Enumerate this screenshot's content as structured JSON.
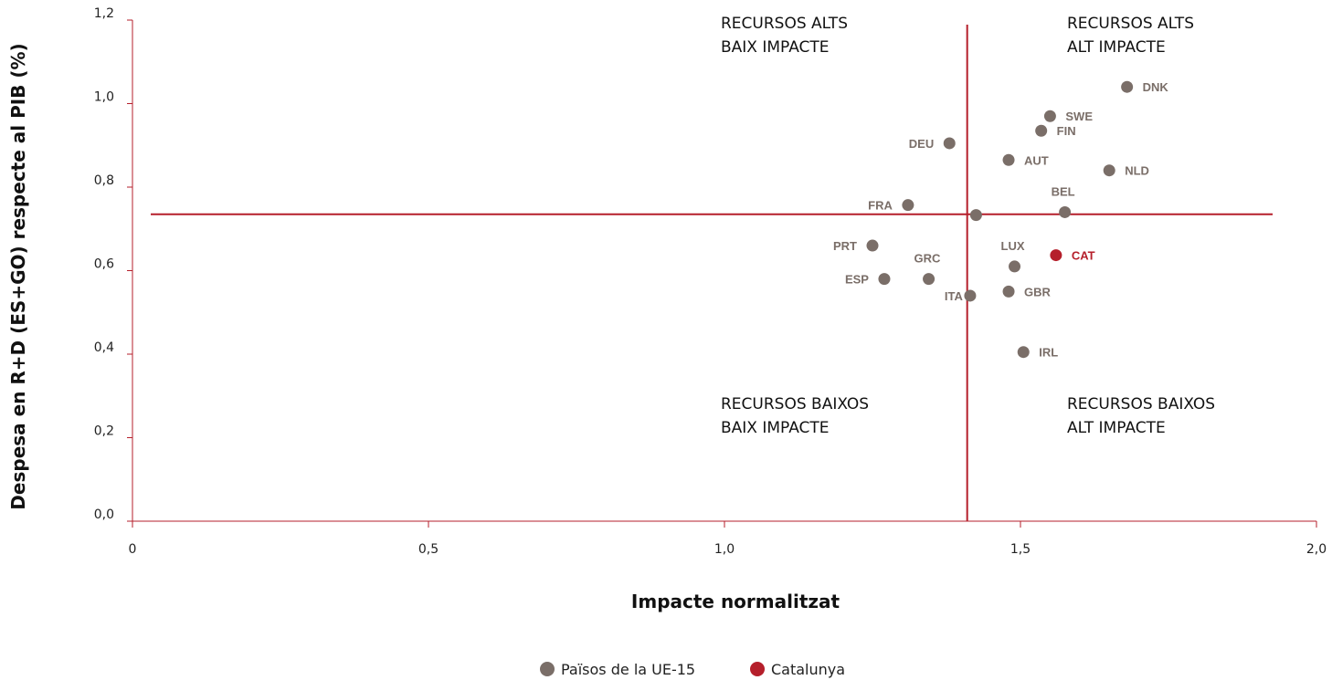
{
  "chart_data": {
    "type": "scatter",
    "xlabel": "Impacte normalitzat",
    "ylabel": "Despesa en R+D (ES+GO) respecte al PIB (%)",
    "xlim": [
      0,
      2.0
    ],
    "ylim": [
      0,
      1.2
    ],
    "x_ticks": [
      "0",
      "0,5",
      "1,0",
      "1,5",
      "2,0"
    ],
    "x_tick_values": [
      0,
      0.5,
      1.0,
      1.5,
      2.0
    ],
    "y_ticks": [
      "0,0",
      "0,2",
      "0,4",
      "0,6",
      "0,8",
      "1,0",
      "1,2"
    ],
    "y_tick_values": [
      0,
      0.2,
      0.4,
      0.6,
      0.8,
      1.0,
      1.2
    ],
    "reference_lines": {
      "x": 1.41,
      "y": 0.735
    },
    "quadrants": [
      {
        "id": "top-left",
        "line1": "RECURSOS ALTS",
        "line2": "BAIX IMPACTE"
      },
      {
        "id": "top-right",
        "line1": "RECURSOS ALTS",
        "line2": "ALT IMPACTE"
      },
      {
        "id": "bottom-left",
        "line1": "RECURSOS BAIXOS",
        "line2": "BAIX IMPACTE"
      },
      {
        "id": "bottom-right",
        "line1": "RECURSOS BAIXOS",
        "line2": "ALT IMPACTE"
      }
    ],
    "series": [
      {
        "name": "Països de la UE-15",
        "color": "#7a6e68",
        "points": [
          {
            "label": "DNK",
            "x": 1.68,
            "y": 1.04
          },
          {
            "label": "SWE",
            "x": 1.55,
            "y": 0.97
          },
          {
            "label": "FIN",
            "x": 1.535,
            "y": 0.935
          },
          {
            "label": "DEU",
            "x": 1.38,
            "y": 0.905
          },
          {
            "label": "AUT",
            "x": 1.48,
            "y": 0.865
          },
          {
            "label": "NLD",
            "x": 1.65,
            "y": 0.84
          },
          {
            "label": "FRA",
            "x": 1.31,
            "y": 0.757
          },
          {
            "label": "BEL",
            "x": 1.575,
            "y": 0.74
          },
          {
            "label": "",
            "x": 1.425,
            "y": 0.733
          },
          {
            "label": "PRT",
            "x": 1.25,
            "y": 0.66
          },
          {
            "label": "LUX",
            "x": 1.49,
            "y": 0.61
          },
          {
            "label": "GRC",
            "x": 1.345,
            "y": 0.58
          },
          {
            "label": "ESP",
            "x": 1.27,
            "y": 0.58
          },
          {
            "label": "ITA",
            "x": 1.415,
            "y": 0.54
          },
          {
            "label": "GBR",
            "x": 1.48,
            "y": 0.55
          },
          {
            "label": "IRL",
            "x": 1.505,
            "y": 0.405
          }
        ]
      },
      {
        "name": "Catalunya",
        "color": "#b51f2b",
        "points": [
          {
            "label": "CAT",
            "x": 1.56,
            "y": 0.637
          }
        ]
      }
    ],
    "legend_position": "bottom-center"
  }
}
